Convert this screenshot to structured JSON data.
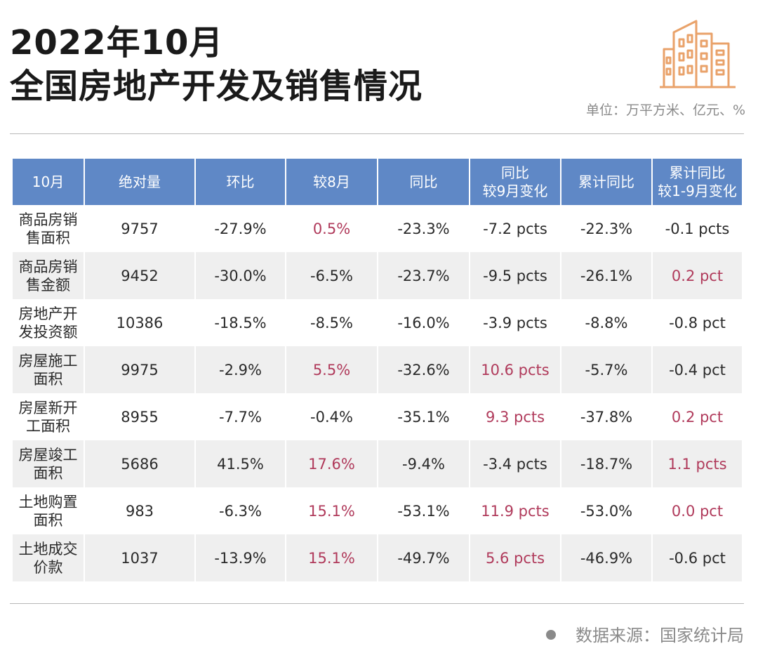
{
  "title": {
    "line1": "2022年10月",
    "line2": "全国房地产开发及销售情况"
  },
  "unit_note": "单位：万平方米、亿元、%",
  "icon": "building-icon",
  "colors": {
    "header_bg": "#5f88c6",
    "highlight_text": "#b03a5b",
    "stripe_bg": "#efefef"
  },
  "table": {
    "headers": [
      "10月",
      "绝对量",
      "环比",
      "较8月",
      "同比",
      "同比\n较9月变化",
      "累计同比",
      "累计同比\n较1-9月变化"
    ],
    "rows": [
      {
        "cells": [
          "商品房销\n售面积",
          "9757",
          "-27.9%",
          "0.5%",
          "-23.3%",
          "-7.2 pcts",
          "-22.3%",
          "-0.1 pcts"
        ],
        "highlight": [
          false,
          false,
          false,
          true,
          false,
          false,
          false,
          false
        ]
      },
      {
        "cells": [
          "商品房销\n售金额",
          "9452",
          "-30.0%",
          "-6.5%",
          "-23.7%",
          "-9.5 pcts",
          "-26.1%",
          "0.2 pct"
        ],
        "highlight": [
          false,
          false,
          false,
          false,
          false,
          false,
          false,
          true
        ]
      },
      {
        "cells": [
          "房地产开\n发投资额",
          "10386",
          "-18.5%",
          "-8.5%",
          "-16.0%",
          "-3.9 pcts",
          "-8.8%",
          "-0.8 pct"
        ],
        "highlight": [
          false,
          false,
          false,
          false,
          false,
          false,
          false,
          false
        ]
      },
      {
        "cells": [
          "房屋施工\n面积",
          "9975",
          "-2.9%",
          "5.5%",
          "-32.6%",
          "10.6 pcts",
          "-5.7%",
          "-0.4 pct"
        ],
        "highlight": [
          false,
          false,
          false,
          true,
          false,
          true,
          false,
          false
        ]
      },
      {
        "cells": [
          "房屋新开\n工面积",
          "8955",
          "-7.7%",
          "-0.4%",
          "-35.1%",
          "9.3 pcts",
          "-37.8%",
          "0.2 pct"
        ],
        "highlight": [
          false,
          false,
          false,
          false,
          false,
          true,
          false,
          true
        ]
      },
      {
        "cells": [
          "房屋竣工\n面积",
          "5686",
          "41.5%",
          "17.6%",
          "-9.4%",
          "-3.4 pcts",
          "-18.7%",
          "1.1 pcts"
        ],
        "highlight": [
          false,
          false,
          false,
          true,
          false,
          false,
          false,
          true
        ]
      },
      {
        "cells": [
          "土地购置\n面积",
          "983",
          "-6.3%",
          "15.1%",
          "-53.1%",
          "11.9 pcts",
          "-53.0%",
          "0.0 pct"
        ],
        "highlight": [
          false,
          false,
          false,
          true,
          false,
          true,
          false,
          true
        ]
      },
      {
        "cells": [
          "土地成交\n价款",
          "1037",
          "-13.9%",
          "15.1%",
          "-49.7%",
          "5.6 pcts",
          "-46.9%",
          "-0.6 pct"
        ],
        "highlight": [
          false,
          false,
          false,
          true,
          false,
          true,
          false,
          false
        ]
      }
    ]
  },
  "source": "数据来源：国家统计局"
}
